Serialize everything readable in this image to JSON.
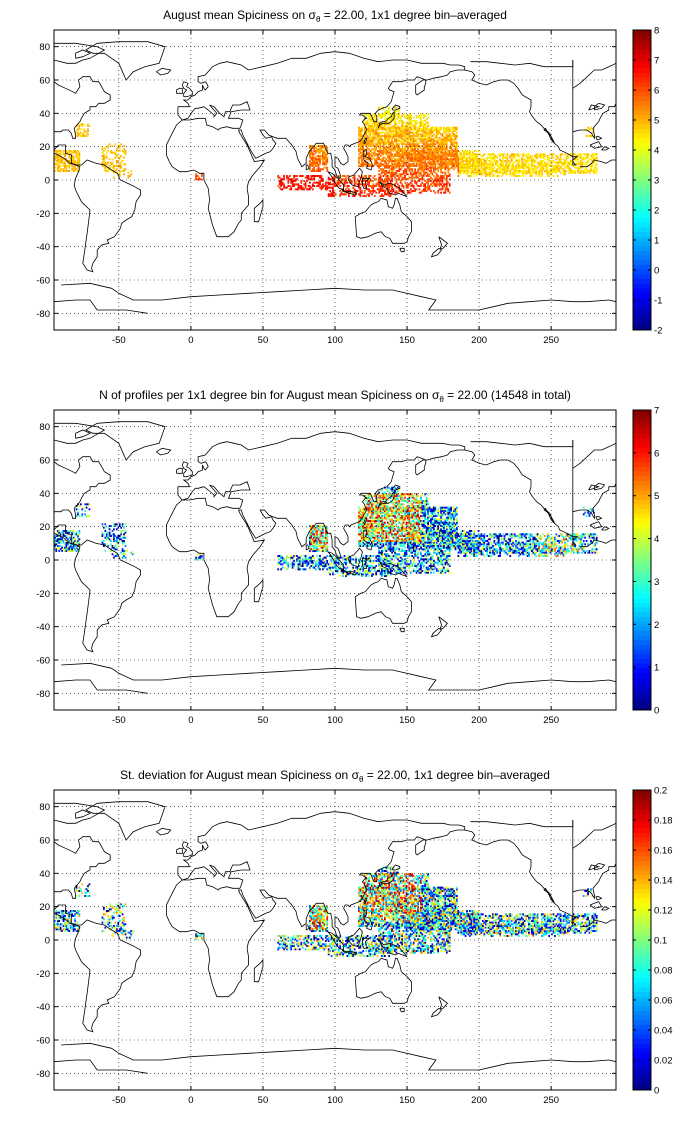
{
  "panels": [
    {
      "title_pre": "August mean Spiciness on σ",
      "title_sub": "θ",
      "title_post": " = 22.00, 1x1 degree bin–averaged",
      "colorbar": {
        "min": -2,
        "max": 8,
        "ticks": [
          "-2",
          "-1",
          "0",
          "1",
          "2",
          "3",
          "4",
          "5",
          "6",
          "7",
          "8"
        ]
      },
      "data_kind": "mean"
    },
    {
      "title_pre": "N of profiles per 1x1 degree bin for August mean Spiciness on σ",
      "title_sub": "θ",
      "title_post": " = 22.00 (14548 in total)",
      "colorbar": {
        "min": 0,
        "max": 7,
        "ticks": [
          "0",
          "1",
          "2",
          "3",
          "4",
          "5",
          "6",
          "7"
        ]
      },
      "data_kind": "count"
    },
    {
      "title_pre": "St. deviation for August mean Spiciness on σ",
      "title_sub": "θ",
      "title_post": " = 22.00, 1x1 degree bin–averaged",
      "colorbar": {
        "min": 0,
        "max": 0.2,
        "ticks": [
          "0",
          "0.02",
          "0.04",
          "0.06",
          "0.08",
          "0.1",
          "0.12",
          "0.14",
          "0.16",
          "0.18",
          "0.2"
        ]
      },
      "data_kind": "std"
    }
  ],
  "map_axes": {
    "xlim": [
      -95,
      295
    ],
    "ylim": [
      -90,
      90
    ],
    "xticks": [
      "-50",
      "0",
      "50",
      "100",
      "150",
      "200",
      "250"
    ],
    "yticks": [
      "-80",
      "-60",
      "-40",
      "-20",
      "0",
      "20",
      "40",
      "60",
      "80"
    ]
  },
  "colormap": "jet",
  "grid": "dotted"
}
